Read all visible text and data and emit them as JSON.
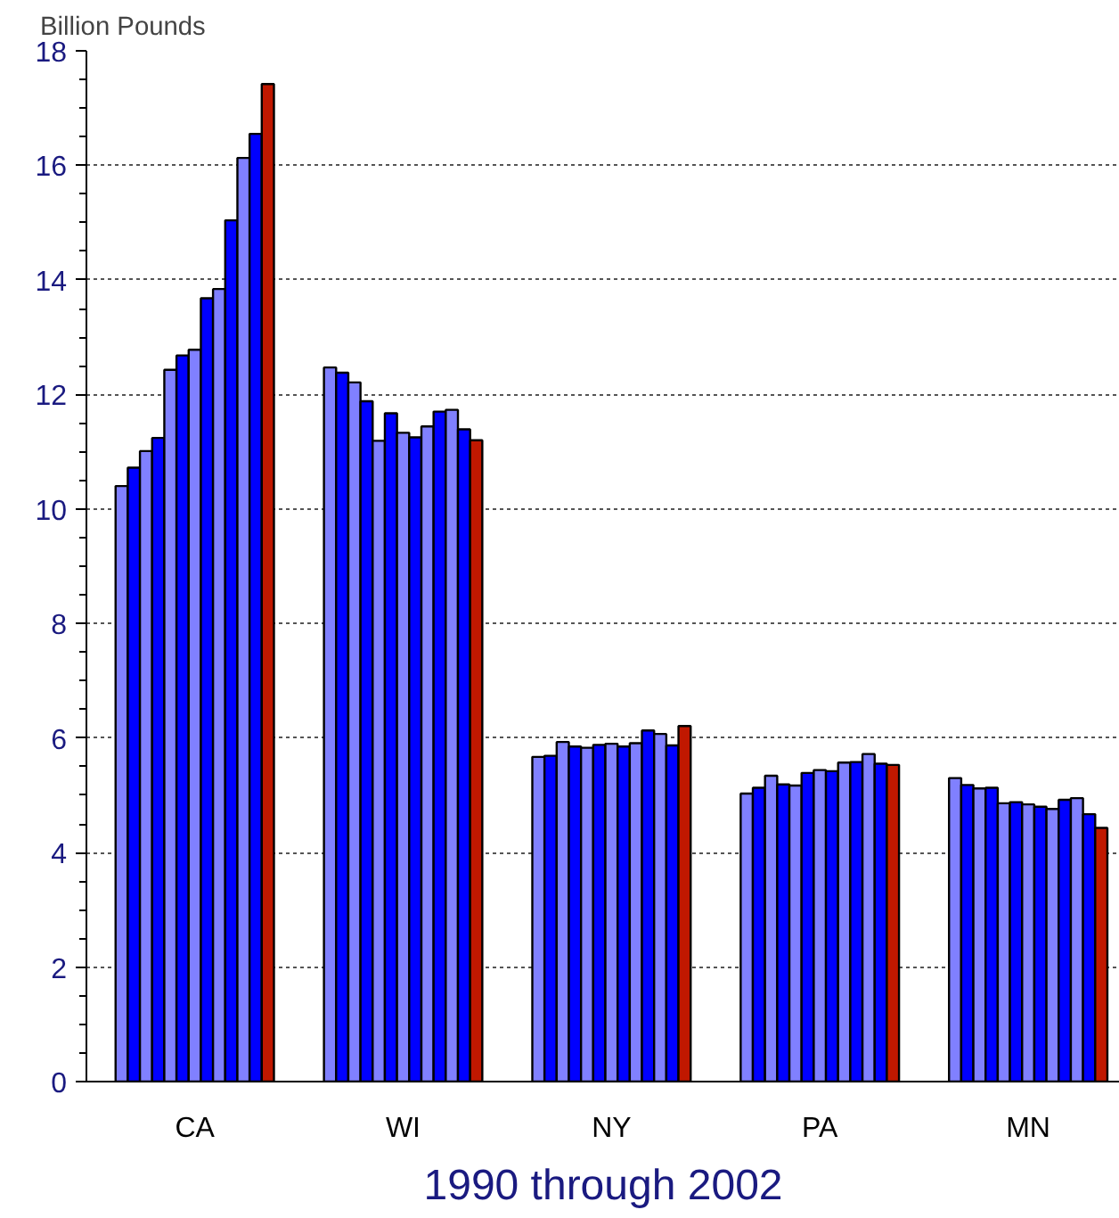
{
  "chart_data": {
    "type": "bar",
    "title": "1990 through 2002",
    "ylabel": "Billion Pounds",
    "categories": [
      "CA",
      "WI",
      "NY",
      "PA",
      "MN"
    ],
    "series": [
      {
        "color": "#8080ff",
        "values": [
          10.4,
          12.47,
          5.67,
          5.03,
          5.3
        ]
      },
      {
        "color": "#0000ff",
        "values": [
          10.72,
          12.38,
          5.69,
          5.13,
          5.18
        ]
      },
      {
        "color": "#8080ff",
        "values": [
          11.01,
          12.21,
          5.93,
          5.34,
          5.12
        ]
      },
      {
        "color": "#0000ff",
        "values": [
          11.24,
          11.88,
          5.85,
          5.19,
          5.13
        ]
      },
      {
        "color": "#8080ff",
        "values": [
          12.43,
          11.19,
          5.83,
          5.17,
          4.86
        ]
      },
      {
        "color": "#0000ff",
        "values": [
          12.68,
          11.67,
          5.88,
          5.39,
          4.88
        ]
      },
      {
        "color": "#8080ff",
        "values": [
          12.78,
          11.33,
          5.9,
          5.44,
          4.84
        ]
      },
      {
        "color": "#0000ff",
        "values": [
          13.68,
          11.25,
          5.85,
          5.42,
          4.8
        ]
      },
      {
        "color": "#8080ff",
        "values": [
          13.84,
          11.44,
          5.91,
          5.57,
          4.76
        ]
      },
      {
        "color": "#0000ff",
        "values": [
          15.04,
          11.7,
          6.13,
          5.58,
          4.92
        ]
      },
      {
        "color": "#8080ff",
        "values": [
          16.13,
          11.73,
          6.07,
          5.72,
          4.95
        ]
      },
      {
        "color": "#0000ff",
        "values": [
          16.55,
          11.39,
          5.87,
          5.55,
          4.67
        ]
      },
      {
        "color": "#c01800",
        "values": [
          17.42,
          11.2,
          6.21,
          5.53,
          4.43
        ]
      }
    ],
    "ylim": [
      0,
      18
    ],
    "yticks": [
      0,
      2,
      4,
      6,
      8,
      10,
      12,
      14,
      16,
      18
    ],
    "grid": "y"
  }
}
